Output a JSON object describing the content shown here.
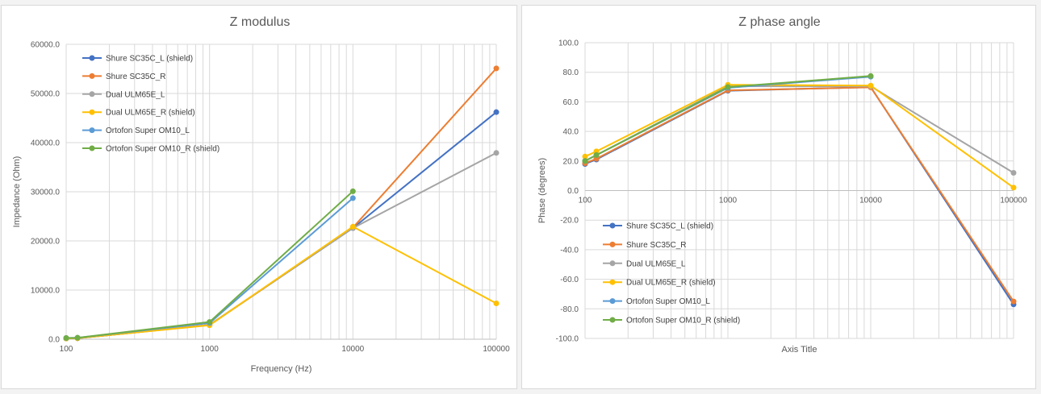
{
  "chart_data": [
    {
      "type": "scatter",
      "title": "Z modulus",
      "xlabel": "Frequency (Hz)",
      "ylabel": "Impedance (Ohm)",
      "xscale": "log",
      "xlim": [
        100,
        100000
      ],
      "ylim": [
        0,
        60000
      ],
      "xticks": [
        "100",
        "1000",
        "10000",
        "100000"
      ],
      "yticks": [
        "0.0",
        "10000.0",
        "20000.0",
        "30000.0",
        "40000.0",
        "50000.0",
        "60000.0"
      ],
      "grid": true,
      "legend_position": "top-left",
      "series": [
        {
          "name": "Shure SC35C_L (shield)",
          "color": "#4472C4",
          "x": [
            100,
            120,
            1000,
            10000,
            100000
          ],
          "y": [
            150,
            200,
            2900,
            22600,
            46200
          ]
        },
        {
          "name": "Shure SC35C_R",
          "color": "#ED7D31",
          "x": [
            100,
            120,
            1000,
            10000,
            100000
          ],
          "y": [
            150,
            200,
            2900,
            22700,
            55100
          ]
        },
        {
          "name": "Dual ULM65E_L",
          "color": "#A5A5A5",
          "x": [
            100,
            120,
            1000,
            10000,
            100000
          ],
          "y": [
            150,
            200,
            2950,
            22600,
            37900
          ]
        },
        {
          "name": "Dual ULM65E_R (shield)",
          "color": "#FFC000",
          "x": [
            100,
            120,
            1000,
            10000,
            100000
          ],
          "y": [
            150,
            200,
            2850,
            22900,
            7300
          ]
        },
        {
          "name": "Ortofon Super OM10_L",
          "color": "#5B9BD5",
          "x": [
            100,
            120,
            1000,
            10000
          ],
          "y": [
            250,
            300,
            3300,
            28700
          ]
        },
        {
          "name": "Ortofon Super OM10_R (shield)",
          "color": "#70AD47",
          "x": [
            100,
            120,
            1000,
            10000
          ],
          "y": [
            250,
            300,
            3500,
            30100
          ]
        }
      ]
    },
    {
      "type": "scatter",
      "title": "Z phase angle",
      "xlabel": "Axis Title",
      "ylabel": "Phase (degrees)",
      "xscale": "log",
      "xlim": [
        100,
        100000
      ],
      "ylim": [
        -100,
        100
      ],
      "xticks": [
        "100",
        "1000",
        "10000",
        "100000"
      ],
      "yticks": [
        "-100.0",
        "-80.0",
        "-60.0",
        "-40.0",
        "-20.0",
        "0.0",
        "20.0",
        "40.0",
        "60.0",
        "80.0",
        "100.0"
      ],
      "grid": true,
      "legend_position": "bottom-left",
      "series": [
        {
          "name": "Shure SC35C_L (shield)",
          "color": "#4472C4",
          "x": [
            100,
            120,
            1000,
            10000,
            100000
          ],
          "y": [
            18,
            21,
            67.5,
            70,
            -77
          ]
        },
        {
          "name": "Shure SC35C_R",
          "color": "#ED7D31",
          "x": [
            100,
            120,
            1000,
            10000,
            100000
          ],
          "y": [
            18.5,
            21.5,
            67.8,
            69.8,
            -75
          ]
        },
        {
          "name": "Dual ULM65E_L",
          "color": "#A5A5A5",
          "x": [
            100,
            120,
            1000,
            10000,
            100000
          ],
          "y": [
            20,
            24,
            70.5,
            70.5,
            12
          ]
        },
        {
          "name": "Dual ULM65E_R (shield)",
          "color": "#FFC000",
          "x": [
            100,
            120,
            1000,
            10000,
            100000
          ],
          "y": [
            23,
            26.5,
            71.5,
            71,
            2
          ]
        },
        {
          "name": "Ortofon Super OM10_L",
          "color": "#5B9BD5",
          "x": [
            100,
            120,
            1000,
            10000
          ],
          "y": [
            20,
            24,
            69.5,
            77
          ]
        },
        {
          "name": "Ortofon Super OM10_R (shield)",
          "color": "#70AD47",
          "x": [
            100,
            120,
            1000,
            10000
          ],
          "y": [
            20,
            24,
            70,
            77.5
          ]
        }
      ]
    }
  ]
}
